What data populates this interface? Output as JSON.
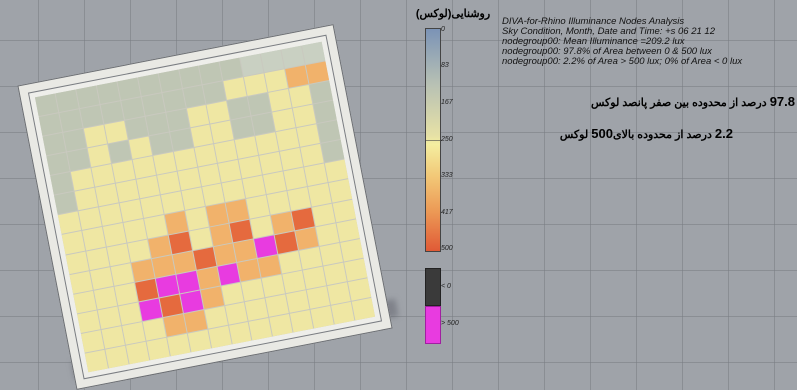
{
  "legend": {
    "title": "روشنایی(لوکس)",
    "ticks": [
      "0",
      "83",
      "167",
      "250",
      "333",
      "417",
      "500"
    ],
    "low_label": "< 0",
    "high_label": "> 500",
    "colors": {
      "low": "#3a3a3a",
      "high": "#e83be0"
    }
  },
  "info": {
    "line1": "DIVA-for-Rhino Illuminance Nodes Analysis",
    "line2": "Sky Condition, Month, Date and Time: +s 06 21 12",
    "line3": "nodegroup00: Mean Illuminance =209.2 lux",
    "line4": "nodegroup00: 97.8% of Area between 0 & 500 lux",
    "line5": "nodegroup00: 2.2% of Area > 500 lux; 0% of Area < 0 lux"
  },
  "annotations": {
    "a1_num": "97.8",
    "a1_text": "درصد از محدوده بین صفر پانصد لوکس",
    "a2_num": "2.2",
    "a2_num2": "500",
    "a2_text_a": "درصد از محدوده بالای",
    "a2_text_b": "لوکس"
  },
  "heatmap_levels": [
    "ggggggggggllll",
    "gggggggggyyyoo",
    "ggyygggyyggyyg",
    "ggygyggyyggyyg",
    "gyyyyyyyyyyyyg",
    "gyyyyyyyyyyyyg",
    "yyyyyyyyyyyyyy",
    "yyyyyoyooyyyyy",
    "yyyyoryoryoryy",
    "yyyoooroomroyy",
    "yyyrmmomooyyyy",
    "yyymrmoyyyyyyy",
    "yyyyooyyyyyyyy",
    "yyyyyyyyyyyyyy"
  ],
  "palette": {
    "l": "#c9d0c2",
    "g": "#bfc6b4",
    "y": "#efe7a3",
    "o": "#f1b26b",
    "r": "#e56a3e",
    "m": "#e83be0"
  }
}
